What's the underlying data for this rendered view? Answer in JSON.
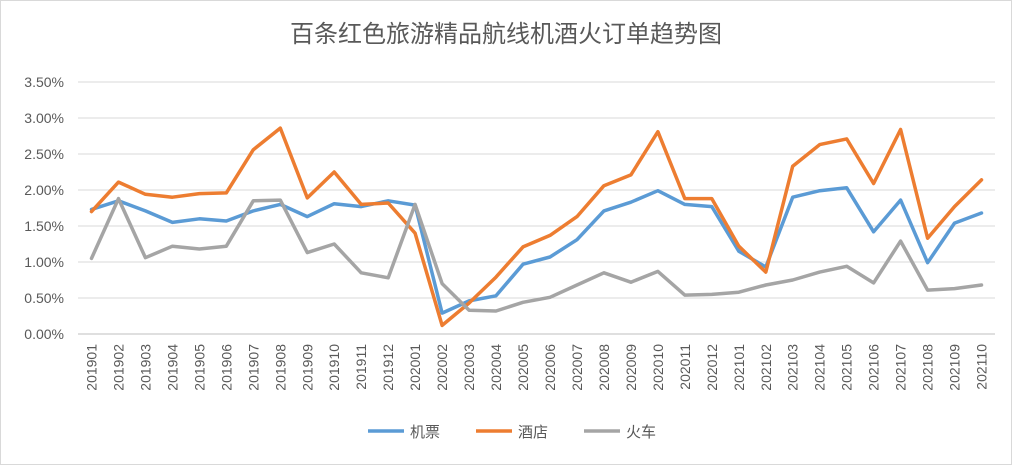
{
  "chart_data": {
    "type": "line",
    "title": "百条红色旅游精品航线机酒火订单趋势图",
    "xlabel": "",
    "ylabel": "",
    "categories": [
      "201901",
      "201902",
      "201903",
      "201904",
      "201905",
      "201906",
      "201907",
      "201908",
      "201909",
      "201910",
      "201911",
      "201912",
      "202001",
      "202002",
      "202003",
      "202004",
      "202005",
      "202006",
      "202007",
      "202008",
      "202009",
      "202010",
      "202011",
      "202012",
      "202101",
      "202102",
      "202103",
      "202104",
      "202105",
      "202106",
      "202107",
      "202108",
      "202109",
      "202110"
    ],
    "y_ticks": [
      "0.00%",
      "0.50%",
      "1.00%",
      "1.50%",
      "2.00%",
      "2.50%",
      "3.00%",
      "3.50%"
    ],
    "ylim": [
      0,
      3.5
    ],
    "y_unit": "%",
    "grid": true,
    "legend_position": "bottom",
    "series": [
      {
        "name": "机票",
        "color": "#5B9BD5",
        "values": [
          1.73,
          1.85,
          1.71,
          1.55,
          1.6,
          1.57,
          1.71,
          1.8,
          1.63,
          1.81,
          1.77,
          1.85,
          1.79,
          0.29,
          0.46,
          0.53,
          0.97,
          1.07,
          1.31,
          1.71,
          1.83,
          1.99,
          1.8,
          1.77,
          1.15,
          0.93,
          1.9,
          1.99,
          2.03,
          1.42,
          1.86,
          0.99,
          1.54,
          1.68
        ]
      },
      {
        "name": "酒店",
        "color": "#ED7D31",
        "values": [
          1.7,
          2.11,
          1.94,
          1.9,
          1.95,
          1.96,
          2.56,
          2.86,
          1.89,
          2.25,
          1.8,
          1.82,
          1.4,
          0.12,
          0.43,
          0.79,
          1.21,
          1.37,
          1.63,
          2.06,
          2.21,
          2.81,
          1.88,
          1.88,
          1.22,
          0.86,
          2.33,
          2.63,
          2.71,
          2.09,
          2.84,
          1.33,
          1.77,
          2.14
        ]
      },
      {
        "name": "火车",
        "color": "#A5A5A5",
        "values": [
          1.05,
          1.88,
          1.06,
          1.22,
          1.18,
          1.22,
          1.85,
          1.86,
          1.13,
          1.25,
          0.85,
          0.78,
          1.8,
          0.7,
          0.33,
          0.32,
          0.44,
          0.51,
          0.68,
          0.85,
          0.72,
          0.87,
          0.54,
          0.55,
          0.58,
          0.68,
          0.75,
          0.86,
          0.94,
          0.71,
          1.29,
          0.61,
          0.63,
          0.68
        ]
      }
    ]
  }
}
